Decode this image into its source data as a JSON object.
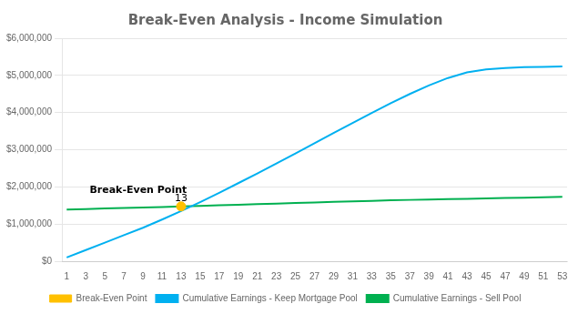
{
  "chart_data": {
    "type": "line",
    "title": "Break-Even Analysis - Income Simulation",
    "x": [
      1,
      3,
      5,
      7,
      9,
      11,
      13,
      15,
      17,
      19,
      21,
      23,
      25,
      27,
      29,
      31,
      33,
      35,
      37,
      39,
      41,
      43,
      45,
      47,
      49,
      51,
      53
    ],
    "series": [
      {
        "name": "Cumulative Earnings - Keep Mortgage Pool",
        "color": "#00B0F0",
        "values": [
          100000,
          300000,
          500000,
          700000,
          900000,
          1120000,
          1350000,
          1590000,
          1840000,
          2100000,
          2360000,
          2630000,
          2900000,
          3175000,
          3450000,
          3720000,
          3990000,
          4250000,
          4500000,
          4730000,
          4930000,
          5080000,
          5160000,
          5200000,
          5220000,
          5230000,
          5240000
        ]
      },
      {
        "name": "Cumulative Earnings - Sell Pool",
        "color": "#00B050",
        "values": [
          1390000,
          1405000,
          1420000,
          1435000,
          1445000,
          1460000,
          1475000,
          1490000,
          1505000,
          1520000,
          1535000,
          1550000,
          1565000,
          1580000,
          1595000,
          1610000,
          1625000,
          1640000,
          1650000,
          1660000,
          1670000,
          1680000,
          1690000,
          1700000,
          1710000,
          1720000,
          1730000
        ]
      },
      {
        "name": "Break-Even Point",
        "type": "scatter",
        "color": "#FFC000",
        "x": [
          13
        ],
        "values": [
          1475000
        ]
      }
    ],
    "xlim": [
      0.5,
      53.5
    ],
    "xticks": [
      1,
      3,
      5,
      7,
      9,
      11,
      13,
      15,
      17,
      19,
      21,
      23,
      25,
      27,
      29,
      31,
      33,
      35,
      37,
      39,
      41,
      43,
      45,
      47,
      49,
      51,
      53
    ],
    "ylim": [
      0,
      6000000
    ],
    "yticks": [
      {
        "value": 0,
        "label": "$0"
      },
      {
        "value": 1000000,
        "label": "$1,000,000"
      },
      {
        "value": 2000000,
        "label": "$2,000,000"
      },
      {
        "value": 3000000,
        "label": "$3,000,000"
      },
      {
        "value": 4000000,
        "label": "$4,000,000"
      },
      {
        "value": 5000000,
        "label": "$5,000,000"
      },
      {
        "value": 6000000,
        "label": "$6,000,000"
      }
    ],
    "grid": "y",
    "legend": "bottom",
    "annotations": [
      {
        "text": "Break-Even Point",
        "x": 8.5,
        "y": 1845000
      },
      {
        "text": "13",
        "x": 13,
        "y": 1605000
      }
    ]
  }
}
